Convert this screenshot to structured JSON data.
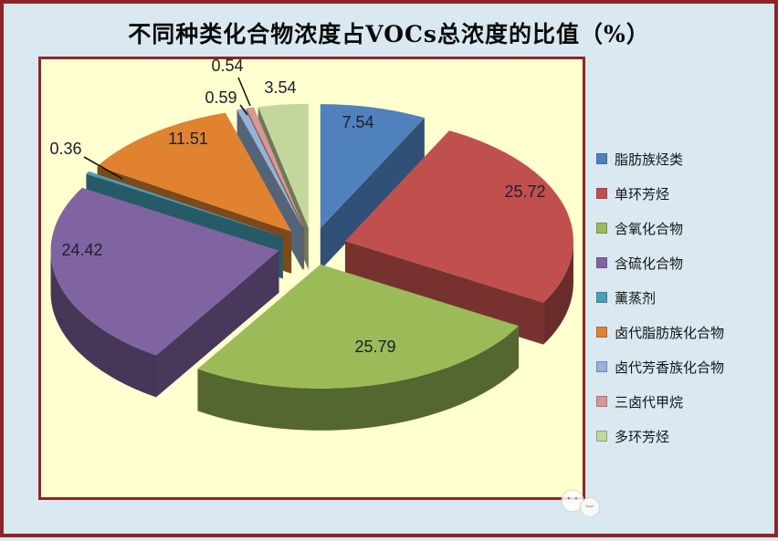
{
  "page": {
    "background_color": "#d9e8f1",
    "plot_background_color": "#ffffcf",
    "frame_color": "#8f2529"
  },
  "chart_data": {
    "type": "pie",
    "variant": "3d-exploded",
    "title": "不同种类化合物浓度占VOCs总浓度的比值（%）",
    "unit": "%",
    "legend_position": "right",
    "data_labels_shown": true,
    "categories": [
      "脂肪族烃类",
      "单环芳烃",
      "含氧化合物",
      "含硫化合物",
      "薰蒸剂",
      "卤代脂肪族化合物",
      "卤代芳香族化合物",
      "三卤代甲烷",
      "多环芳烃"
    ],
    "values": [
      7.54,
      25.72,
      25.79,
      24.42,
      0.36,
      11.51,
      0.59,
      0.54,
      3.54
    ],
    "colors": [
      "#4f81bd",
      "#c0504d",
      "#9bbb59",
      "#8064a2",
      "#45a0b8",
      "#e0822f",
      "#95b3d7",
      "#d99694",
      "#c3d69b"
    ],
    "data_label_color": "#1f1e2c"
  }
}
